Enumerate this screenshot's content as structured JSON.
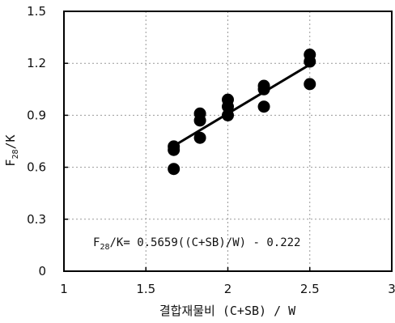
{
  "chart_data": {
    "type": "scatter",
    "title": "",
    "xlabel": "결합재물비 (C+SB) / W",
    "ylabel_main": "F",
    "ylabel_sub": "28",
    "ylabel_rest": "/K",
    "xlim": [
      1,
      3
    ],
    "ylim": [
      0,
      1.5
    ],
    "xticks": [
      "1",
      "1.5",
      "2",
      "2.5",
      "3"
    ],
    "yticks": [
      "0",
      "0.3",
      "0.6",
      "0.9",
      "1.2",
      "1.5"
    ],
    "grid": "dotted",
    "points": [
      {
        "x": 1.67,
        "y": 0.72
      },
      {
        "x": 1.67,
        "y": 0.7
      },
      {
        "x": 1.67,
        "y": 0.59
      },
      {
        "x": 1.83,
        "y": 0.91
      },
      {
        "x": 1.83,
        "y": 0.87
      },
      {
        "x": 1.83,
        "y": 0.77
      },
      {
        "x": 2.0,
        "y": 0.99
      },
      {
        "x": 2.0,
        "y": 0.95
      },
      {
        "x": 2.0,
        "y": 0.9
      },
      {
        "x": 2.22,
        "y": 1.07
      },
      {
        "x": 2.22,
        "y": 1.05
      },
      {
        "x": 2.22,
        "y": 0.95
      },
      {
        "x": 2.5,
        "y": 1.25
      },
      {
        "x": 2.5,
        "y": 1.21
      },
      {
        "x": 2.5,
        "y": 1.08
      }
    ],
    "fit_line": {
      "slope": 0.5659,
      "intercept": -0.222,
      "x_range": [
        1.67,
        2.5
      ]
    },
    "annotation": {
      "prefix": "F",
      "sub": "28",
      "rest": "/K= 0.5659((C+SB)/W) - 0.222"
    }
  }
}
